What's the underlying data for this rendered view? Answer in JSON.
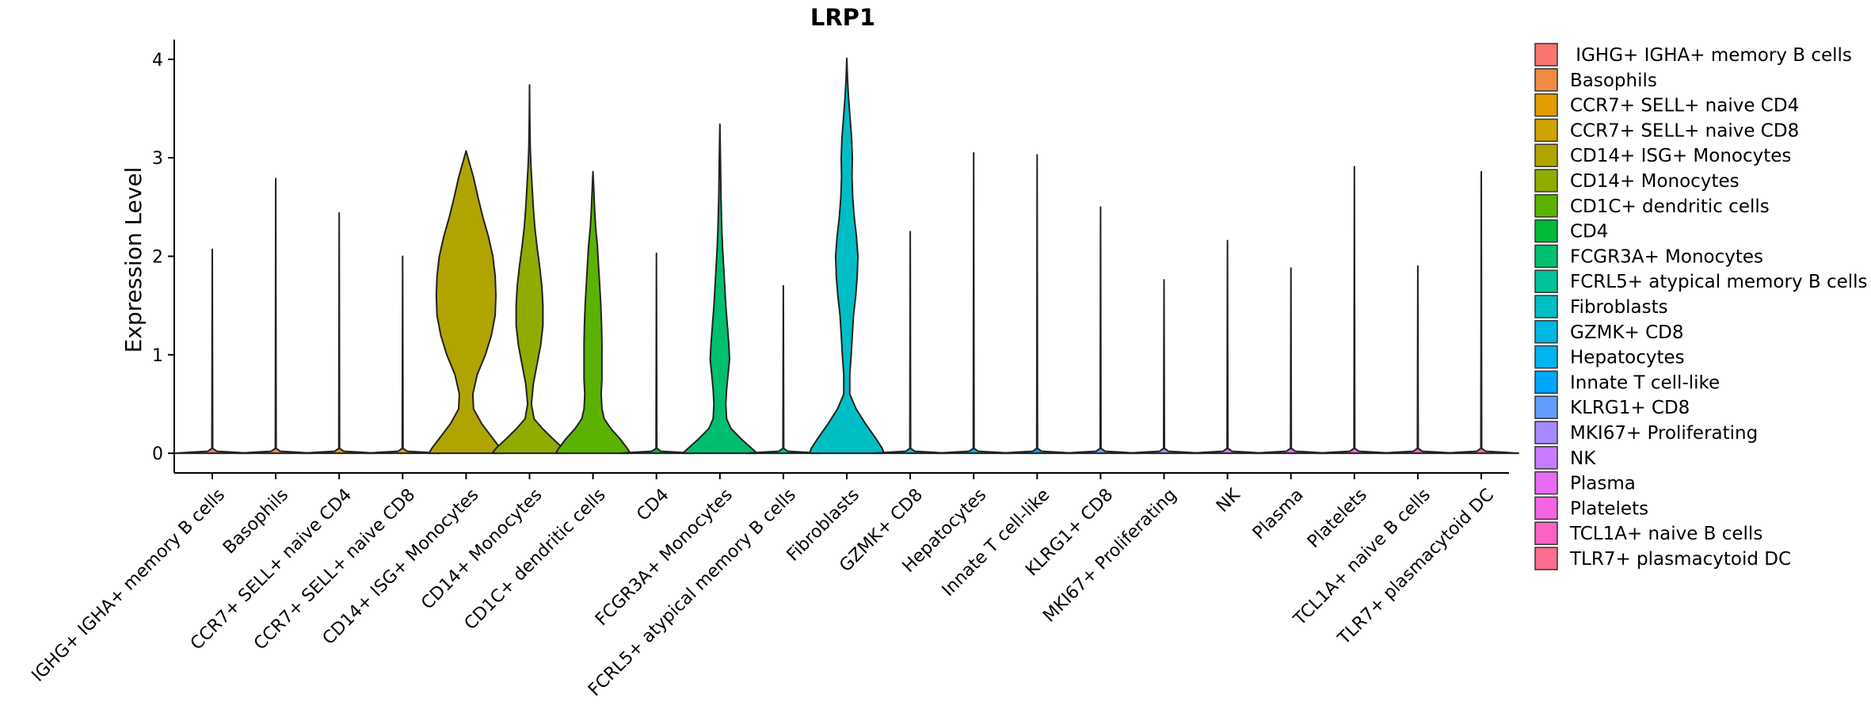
{
  "chart_data": {
    "type": "violin",
    "title": "LRP1",
    "xlabel": "",
    "ylabel": "Expression Level",
    "ylim": [
      -0.2,
      4.2
    ],
    "yticks": [
      0,
      1,
      2,
      3,
      4
    ],
    "categories": [
      "IGHG+ IGHA+ memory B cells",
      "Basophils",
      "CCR7+ SELL+ naive CD4",
      "CCR7+ SELL+ naive CD8",
      "CD14+ ISG+ Monocytes",
      "CD14+ Monocytes",
      "CD1C+ dendritic cells",
      "CD4",
      "FCGR3A+ Monocytes",
      "FCRL5+ atypical memory B cells",
      "Fibroblasts",
      "GZMK+ CD8",
      "Hepatocytes",
      "Innate T cell-like",
      "KLRG1+ CD8",
      "MKI67+ Proliferating",
      "NK",
      "Plasma",
      "Platelets",
      "TCL1A+ naive B cells",
      "TLR7+ plasmacytoid DC"
    ],
    "legend_labels": [
      " IGHG+ IGHA+ memory B cells",
      "Basophils",
      "CCR7+ SELL+ naive CD4",
      "CCR7+ SELL+ naive CD8",
      "CD14+ ISG+ Monocytes",
      "CD14+ Monocytes",
      "CD1C+ dendritic cells",
      "CD4",
      "FCGR3A+ Monocytes",
      "FCRL5+ atypical memory B cells",
      "Fibroblasts",
      "GZMK+ CD8",
      "Hepatocytes",
      "Innate T cell-like",
      "KLRG1+ CD8",
      "MKI67+ Proliferating",
      "NK",
      "Plasma",
      "Platelets",
      "TCL1A+ naive B cells",
      "TLR7+ plasmacytoid DC"
    ],
    "colors": [
      "#F8766D",
      "#F08B45",
      "#E19C00",
      "#CFA400",
      "#B0A500",
      "#8FAC00",
      "#5BB300",
      "#00BA38",
      "#00BF6E",
      "#00C19A",
      "#00BFC4",
      "#00B8E1",
      "#00B5EE",
      "#00A5FF",
      "#619CFF",
      "#A58AFF",
      "#C77CFF",
      "#E76BF3",
      "#F564E3",
      "#FF61C3",
      "#FF6C91"
    ],
    "max_values": [
      2.07,
      2.79,
      2.44,
      2.0,
      3.07,
      3.74,
      2.86,
      2.03,
      3.34,
      1.7,
      4.01,
      2.25,
      3.05,
      3.03,
      2.5,
      1.76,
      2.16,
      1.88,
      2.91,
      1.9,
      2.86
    ],
    "density_profiles": [
      {
        "name": "CD14+ ISG+ Monocytes",
        "y": [
          0,
          0.05,
          0.15,
          0.3,
          0.45,
          0.6,
          0.8,
          1.0,
          1.2,
          1.4,
          1.6,
          1.8,
          2.0,
          2.2,
          2.4,
          2.6,
          2.8,
          3.0,
          3.07
        ],
        "width": [
          1.0,
          0.92,
          0.72,
          0.42,
          0.2,
          0.18,
          0.3,
          0.52,
          0.68,
          0.78,
          0.8,
          0.78,
          0.72,
          0.6,
          0.45,
          0.32,
          0.2,
          0.05,
          0
        ]
      },
      {
        "name": "CD14+ Monocytes",
        "y": [
          0,
          0.05,
          0.15,
          0.25,
          0.35,
          0.5,
          0.7,
          0.9,
          1.1,
          1.3,
          1.5,
          1.7,
          1.9,
          2.1,
          2.3,
          2.5,
          2.7,
          2.9,
          3.1,
          3.3,
          3.5,
          3.74
        ],
        "width": [
          1.0,
          0.9,
          0.62,
          0.35,
          0.12,
          0.05,
          0.1,
          0.2,
          0.3,
          0.36,
          0.36,
          0.33,
          0.27,
          0.2,
          0.14,
          0.1,
          0.07,
          0.04,
          0.02,
          0.01,
          0.005,
          0
        ]
      },
      {
        "name": "CD1C+ dendritic cells",
        "y": [
          0,
          0.05,
          0.15,
          0.25,
          0.35,
          0.45,
          0.6,
          0.75,
          0.9,
          1.1,
          1.3,
          1.5,
          1.7,
          1.9,
          2.1,
          2.3,
          2.5,
          2.7,
          2.86
        ],
        "width": [
          1.0,
          0.92,
          0.72,
          0.48,
          0.3,
          0.24,
          0.22,
          0.24,
          0.24,
          0.24,
          0.23,
          0.21,
          0.18,
          0.15,
          0.12,
          0.07,
          0.04,
          0.02,
          0
        ]
      },
      {
        "name": "FCGR3A+ Monocytes",
        "y": [
          0,
          0.05,
          0.15,
          0.25,
          0.35,
          0.5,
          0.65,
          0.8,
          0.95,
          1.1,
          1.3,
          1.5,
          1.7,
          1.9,
          2.1,
          2.3,
          2.6,
          2.9,
          3.34
        ],
        "width": [
          1.0,
          0.85,
          0.56,
          0.3,
          0.18,
          0.16,
          0.18,
          0.22,
          0.26,
          0.24,
          0.2,
          0.16,
          0.13,
          0.1,
          0.07,
          0.05,
          0.03,
          0.02,
          0
        ]
      },
      {
        "name": "Fibroblasts",
        "y": [
          0,
          0.05,
          0.15,
          0.3,
          0.45,
          0.6,
          0.8,
          1.0,
          1.2,
          1.4,
          1.6,
          1.8,
          2.0,
          2.2,
          2.4,
          2.6,
          2.8,
          3.0,
          3.2,
          3.4,
          3.6,
          3.8,
          4.01
        ],
        "width": [
          1.0,
          0.95,
          0.78,
          0.5,
          0.25,
          0.08,
          0.08,
          0.12,
          0.15,
          0.18,
          0.24,
          0.28,
          0.3,
          0.26,
          0.2,
          0.16,
          0.14,
          0.15,
          0.13,
          0.09,
          0.05,
          0.02,
          0
        ]
      }
    ]
  }
}
